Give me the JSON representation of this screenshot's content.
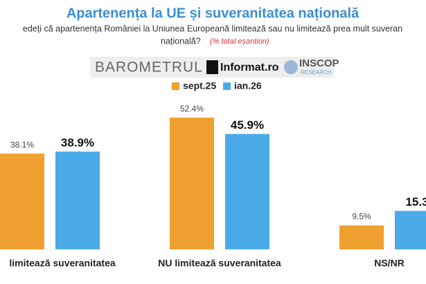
{
  "chart_data": {
    "type": "bar",
    "title": "Apartenența la UE și suveranitatea națională",
    "subtitle": [
      "edeți că apartenența României la Uniunea Europeană limitează sau nu limitează prea mult suveran",
      "națională?"
    ],
    "subtitle_note": "(% total eșantion)",
    "categories": [
      "limitează suveranitatea",
      "NU limitează suveranitatea",
      "NS/NR"
    ],
    "series": [
      {
        "name": "sept.25",
        "color": "#f0a030",
        "values": [
          38.1,
          52.4,
          9.5
        ],
        "value_labels": [
          "38.1%",
          "52.4%",
          "9.5%"
        ]
      },
      {
        "name": "ian.26",
        "color": "#4aabe8",
        "values": [
          38.9,
          45.9,
          15.3
        ],
        "value_labels": [
          "38.9%",
          "45.9%",
          "15.3"
        ]
      }
    ]
  },
  "branding": {
    "barometer": "BAROMETRUL",
    "informat": "Informat.ro",
    "inscop": "INSCOP",
    "research": "RESEARCH"
  }
}
